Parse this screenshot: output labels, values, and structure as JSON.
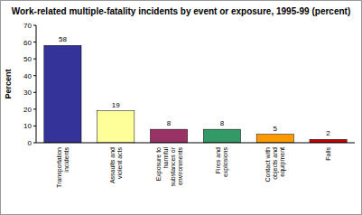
{
  "chart_data": {
    "type": "bar",
    "title": "Work-related multiple-fatality incidents by event or exposure, 1995-99 (percent)",
    "y_label": "Percent",
    "categories": [
      "Transportation incidents",
      "Assaults and violent acts",
      "Exposure to harmful substances or environments",
      "Fires and explosions",
      "Contact with objects and equipment",
      "Falls"
    ],
    "values": [
      58,
      19,
      8,
      8,
      5,
      2
    ],
    "colors": [
      "#333399",
      "#ffff99",
      "#993366",
      "#339966",
      "#ff9900",
      "#cc0000"
    ],
    "ylim": [
      0,
      70
    ],
    "yticks": [
      0,
      10,
      20,
      30,
      40,
      50,
      60,
      70
    ],
    "grid": false,
    "data_labels": true
  }
}
